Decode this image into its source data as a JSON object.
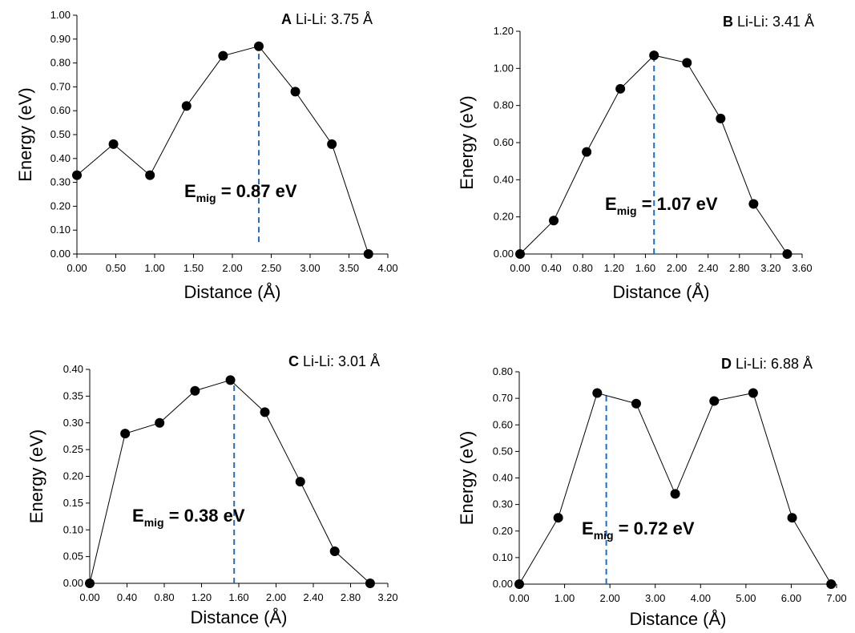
{
  "chart_data": [
    {
      "type": "line",
      "panel_letter": "A",
      "title": "Li-Li: 3.75 Å",
      "xlabel": "Distance (Å)",
      "ylabel": "Energy (eV)",
      "xlim": [
        0,
        4
      ],
      "ylim": [
        0,
        1
      ],
      "xticks": [
        "0.00",
        "0.50",
        "1.00",
        "1.50",
        "2.00",
        "2.50",
        "3.00",
        "3.50",
        "4.00"
      ],
      "yticks": [
        "0.00",
        "0.10",
        "0.20",
        "0.30",
        "0.40",
        "0.50",
        "0.60",
        "0.70",
        "0.80",
        "0.90",
        "1.00"
      ],
      "x": [
        0.0,
        0.47,
        0.94,
        1.41,
        1.88,
        2.34,
        2.81,
        3.28,
        3.75
      ],
      "y": [
        0.33,
        0.46,
        0.33,
        0.62,
        0.83,
        0.87,
        0.68,
        0.46,
        0.0
      ],
      "annotation": {
        "prefix": "E",
        "sub": "mig",
        "suffix": " = 0.87 eV",
        "x": 2.34,
        "y_bottom": 0.05,
        "y_top": 0.87
      },
      "grid": false,
      "series_color": "#000000",
      "marker_line_color": "#1f6fc1"
    },
    {
      "type": "line",
      "panel_letter": "B",
      "title": "Li-Li: 3.41 Å",
      "xlabel": "Distance (Å)",
      "ylabel": "Energy (eV)",
      "xlim": [
        0,
        3.6
      ],
      "ylim": [
        0,
        1.2
      ],
      "xticks": [
        "0.00",
        "0.40",
        "0.80",
        "1.20",
        "1.60",
        "2.00",
        "2.40",
        "2.80",
        "3.20",
        "3.60"
      ],
      "yticks": [
        "0.00",
        "0.20",
        "0.40",
        "0.60",
        "0.80",
        "1.00",
        "1.20"
      ],
      "x": [
        0.0,
        0.43,
        0.85,
        1.28,
        1.71,
        2.13,
        2.56,
        2.98,
        3.41
      ],
      "y": [
        0.0,
        0.18,
        0.55,
        0.89,
        1.07,
        1.03,
        0.73,
        0.27,
        0.0
      ],
      "annotation": {
        "prefix": "E",
        "sub": "mig",
        "suffix": " = 1.07 eV",
        "x": 1.71,
        "y_bottom": 0.0,
        "y_top": 1.07
      },
      "grid": false,
      "series_color": "#000000",
      "marker_line_color": "#1f6fc1"
    },
    {
      "type": "line",
      "panel_letter": "C",
      "title": "Li-Li: 3.01 Å",
      "xlabel": "Distance (Å)",
      "ylabel": "Energy (eV)",
      "xlim": [
        0,
        3.2
      ],
      "ylim": [
        0,
        0.4
      ],
      "xticks": [
        "0.00",
        "0.40",
        "0.80",
        "1.20",
        "1.60",
        "2.00",
        "2.40",
        "2.80",
        "3.20"
      ],
      "yticks": [
        "0.00",
        "0.05",
        "0.10",
        "0.15",
        "0.20",
        "0.25",
        "0.30",
        "0.35",
        "0.40"
      ],
      "x": [
        0.0,
        0.38,
        0.75,
        1.13,
        1.51,
        1.88,
        2.26,
        2.63,
        3.01
      ],
      "y": [
        0.0,
        0.28,
        0.3,
        0.36,
        0.38,
        0.32,
        0.19,
        0.06,
        0.0
      ],
      "annotation": {
        "prefix": "E",
        "sub": "mig",
        "suffix": " = 0.38 eV",
        "x": 1.55,
        "y_bottom": 0.0,
        "y_top": 0.38
      },
      "grid": false,
      "series_color": "#000000",
      "marker_line_color": "#1f6fc1"
    },
    {
      "type": "line",
      "panel_letter": "D",
      "title": "Li-Li: 6.88 Å",
      "xlabel": "Distance (Å)",
      "ylabel": "Energy (eV)",
      "xlim": [
        0,
        7
      ],
      "ylim": [
        0,
        0.8
      ],
      "xticks": [
        "0.00",
        "1.00",
        "2.00",
        "3.00",
        "4.00",
        "5.00",
        "6.00",
        "7.00"
      ],
      "yticks": [
        "0.00",
        "0.10",
        "0.20",
        "0.30",
        "0.40",
        "0.50",
        "0.60",
        "0.70",
        "0.80"
      ],
      "x": [
        0.0,
        0.86,
        1.72,
        2.58,
        3.44,
        4.3,
        5.16,
        6.02,
        6.88
      ],
      "y": [
        0.0,
        0.25,
        0.72,
        0.68,
        0.34,
        0.69,
        0.72,
        0.25,
        0.0
      ],
      "annotation": {
        "prefix": "E",
        "sub": "mig",
        "suffix": " = 0.72 eV",
        "x": 1.92,
        "y_bottom": 0.0,
        "y_top": 0.72
      },
      "grid": false,
      "series_color": "#000000",
      "marker_line_color": "#1f6fc1"
    }
  ]
}
